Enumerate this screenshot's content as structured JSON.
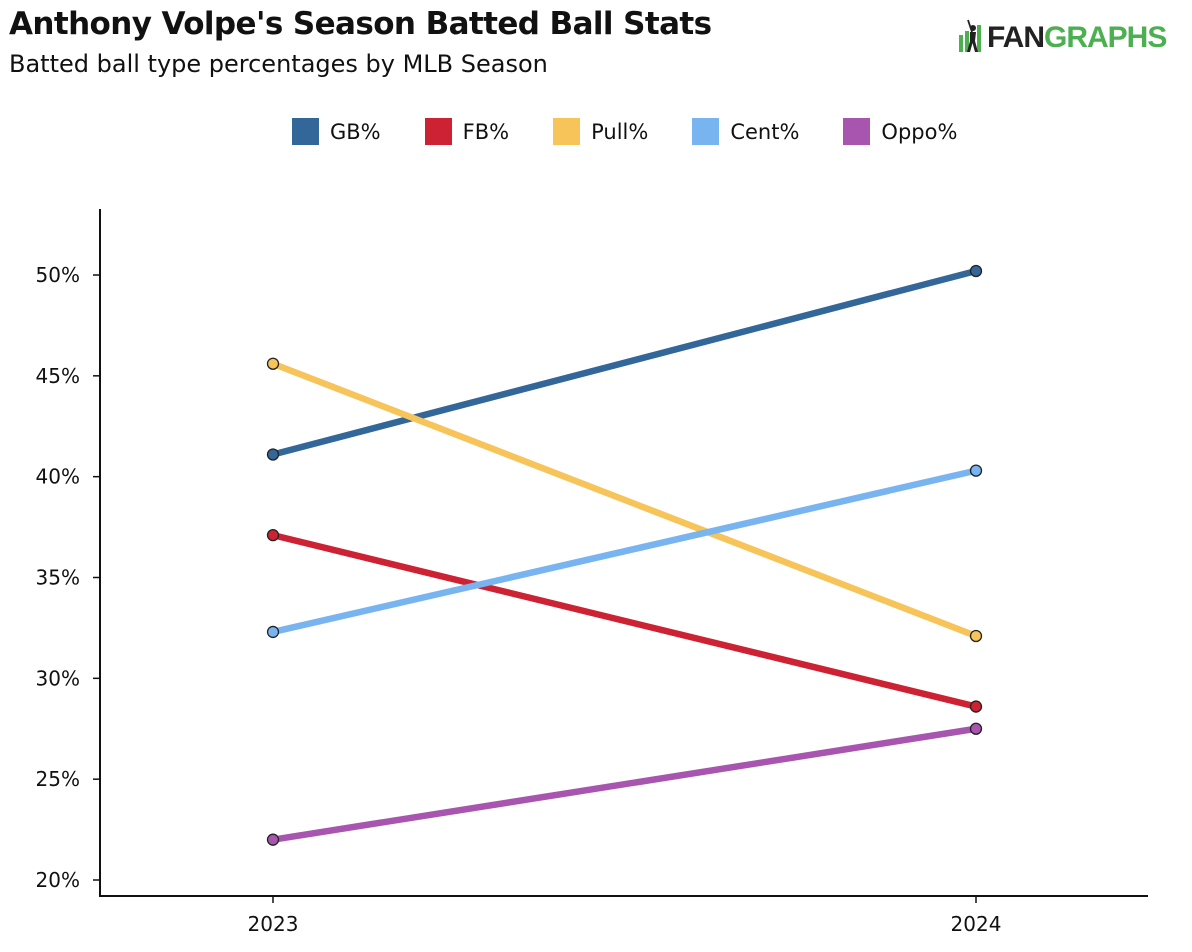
{
  "header": {
    "title": "Anthony Volpe's Season Batted Ball Stats",
    "subtitle": "Batted ball type percentages by MLB Season"
  },
  "logo": {
    "part1": "FAN",
    "part2": "GRAPHS",
    "icon": "batter-icon"
  },
  "chart_data": {
    "type": "line",
    "title": "Anthony Volpe's Season Batted Ball Stats",
    "subtitle": "Batted ball type percentages by MLB Season",
    "xlabel": "",
    "ylabel": "",
    "x": [
      "2023",
      "2024"
    ],
    "ylim": [
      19.5,
      53.3
    ],
    "yticks": [
      20,
      25,
      30,
      35,
      40,
      45,
      50
    ],
    "ytick_labels": [
      "20%",
      "25%",
      "30%",
      "35%",
      "40%",
      "45%",
      "50%"
    ],
    "legend_position": "top-center",
    "grid": false,
    "series": [
      {
        "name": "GB%",
        "color": "#336699",
        "values": [
          41.1,
          50.2
        ]
      },
      {
        "name": "FB%",
        "color": "#cc2233",
        "values": [
          37.1,
          28.6
        ]
      },
      {
        "name": "Pull%",
        "color": "#f7c45a",
        "values": [
          45.6,
          32.1
        ]
      },
      {
        "name": "Cent%",
        "color": "#78b4f0",
        "values": [
          32.3,
          40.3
        ]
      },
      {
        "name": "Oppo%",
        "color": "#a855b0",
        "values": [
          22.0,
          27.5
        ]
      }
    ]
  }
}
